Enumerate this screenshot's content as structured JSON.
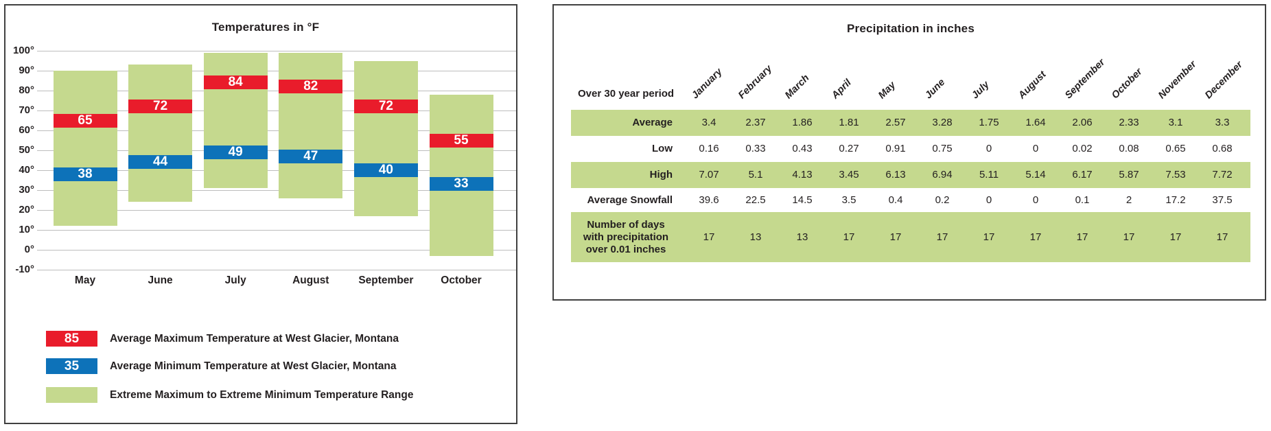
{
  "colors": {
    "range_green": "#c5d98e",
    "max_red": "#e91c2b",
    "min_blue": "#0d72b9",
    "gridline": "#bdbdbd",
    "text": "#231f20",
    "panel_border": "#404040"
  },
  "temperature_chart": {
    "title": "Temperatures in °F",
    "y_ticks": [
      "100°",
      "90°",
      "80°",
      "70°",
      "60°",
      "50°",
      "40°",
      "30°",
      "20°",
      "10°",
      "0°",
      "-10°"
    ],
    "legend": {
      "items": [
        {
          "swatch_label": "85",
          "color": "#e91c2b",
          "label": "Average Maximum Temperature at West Glacier, Montana"
        },
        {
          "swatch_label": "35",
          "color": "#0d72b9",
          "label": "Average Minimum Temperature at West Glacier, Montana"
        },
        {
          "swatch_label": "",
          "color": "#c5d98e",
          "label": "Extreme Maximum to Extreme Minimum Temperature Range"
        }
      ]
    }
  },
  "precipitation_table": {
    "title": "Precipitation in inches",
    "corner_label": "Over 30 year period"
  },
  "chart_data": [
    {
      "type": "bar",
      "subtype": "floating-range-bar",
      "title": "Temperatures in °F",
      "categories": [
        "May",
        "June",
        "July",
        "August",
        "September",
        "October"
      ],
      "series": [
        {
          "name": "Extreme Maximum to Extreme Minimum Temperature Range",
          "color": "#c5d98e",
          "ranges": [
            [
              12,
              90
            ],
            [
              24,
              93
            ],
            [
              31,
              99
            ],
            [
              26,
              99
            ],
            [
              17,
              95
            ],
            [
              -3,
              78
            ]
          ]
        },
        {
          "name": "Average Maximum Temperature at West Glacier, Montana",
          "color": "#e91c2b",
          "values": [
            65,
            72,
            84,
            82,
            72,
            55
          ]
        },
        {
          "name": "Average Minimum Temperature at West Glacier, Montana",
          "color": "#0d72b9",
          "values": [
            38,
            44,
            49,
            47,
            40,
            33
          ]
        }
      ],
      "ylabel": "°F",
      "ylim": [
        -10,
        100
      ],
      "ytick_step": 10,
      "grid": true,
      "legend_position": "bottom-left"
    },
    {
      "type": "table",
      "title": "Precipitation in inches",
      "corner_label": "Over 30 year period",
      "columns": [
        "January",
        "February",
        "March",
        "April",
        "May",
        "June",
        "July",
        "August",
        "September",
        "October",
        "November",
        "December"
      ],
      "rows": [
        {
          "label": "Average",
          "shaded": true,
          "values": [
            3.4,
            2.37,
            1.86,
            1.81,
            2.57,
            3.28,
            1.75,
            1.64,
            2.06,
            2.33,
            3.1,
            3.3
          ]
        },
        {
          "label": "Low",
          "shaded": false,
          "values": [
            0.16,
            0.33,
            0.43,
            0.27,
            0.91,
            0.75,
            0,
            0,
            0.02,
            0.08,
            0.65,
            0.68
          ]
        },
        {
          "label": "High",
          "shaded": true,
          "values": [
            7.07,
            5.1,
            4.13,
            3.45,
            6.13,
            6.94,
            5.11,
            5.14,
            6.17,
            5.87,
            7.53,
            7.72
          ]
        },
        {
          "label": "Average Snowfall",
          "shaded": false,
          "values": [
            39.6,
            22.5,
            14.5,
            3.5,
            0.4,
            0.2,
            0,
            0,
            0.1,
            2,
            17.2,
            37.5
          ]
        },
        {
          "label": "Number of days with precipitation over 0.01 inches",
          "label_lines": [
            "Number of days",
            "with precipitation",
            "over 0.01 inches"
          ],
          "shaded": true,
          "values": [
            17,
            13,
            13,
            17,
            17,
            17,
            17,
            17,
            17,
            17,
            17,
            17
          ]
        }
      ]
    }
  ]
}
